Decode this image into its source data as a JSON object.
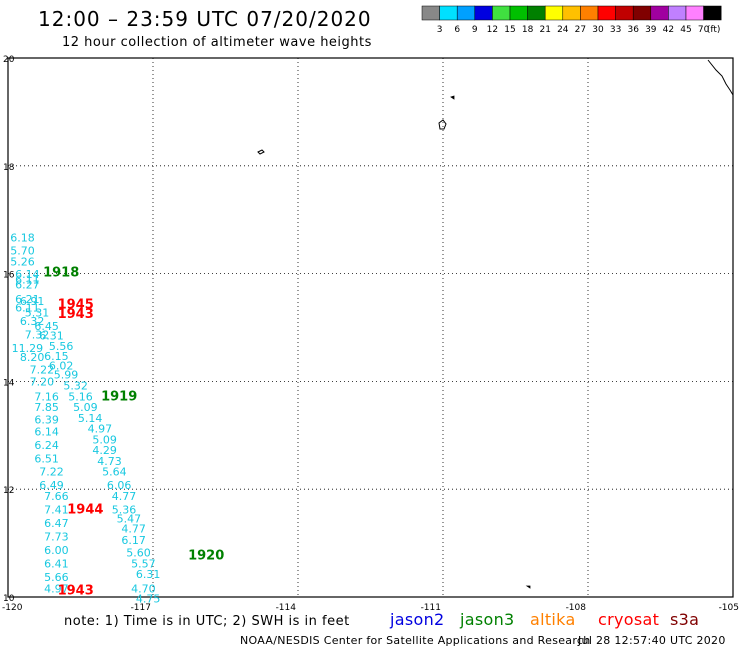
{
  "header": {
    "title": "12:00 – 23:59 UTC 07/20/2020",
    "subtitle": "12 hour collection of altimeter wave heights"
  },
  "legend": {
    "colors": [
      "#888888",
      "#00e0ff",
      "#00a0ff",
      "#0000e0",
      "#40e040",
      "#00c000",
      "#008000",
      "#ffff00",
      "#ffc000",
      "#ff8000",
      "#ff0000",
      "#c00000",
      "#800000",
      "#a000a0",
      "#c080ff",
      "#ff80ff",
      "#000000"
    ],
    "labels": [
      "3",
      "6",
      "9",
      "12",
      "15",
      "18",
      "21",
      "24",
      "27",
      "30",
      "33",
      "36",
      "39",
      "42",
      "45",
      "70"
    ],
    "unit": "(ft)"
  },
  "chart_data": {
    "type": "scatter",
    "title": "12:00 – 23:59 UTC 07/20/2020",
    "xlim": [
      -120,
      -105
    ],
    "ylim": [
      10,
      20
    ],
    "x_ticks": [
      "-120",
      "-117",
      "-114",
      "-111",
      "-108",
      "-105"
    ],
    "y_ticks": [
      "10",
      "12",
      "14",
      "16",
      "18",
      "20"
    ],
    "grid": true,
    "points": [
      {
        "lon": -119.7,
        "lat": 16.6,
        "swh": "6.18"
      },
      {
        "lon": -119.7,
        "lat": 16.35,
        "swh": "5.70"
      },
      {
        "lon": -119.7,
        "lat": 16.15,
        "swh": "5.26"
      },
      {
        "lon": -119.6,
        "lat": 15.92,
        "swh": "6.14"
      },
      {
        "lon": -119.6,
        "lat": 15.82,
        "swh": "6.11"
      },
      {
        "lon": -119.6,
        "lat": 15.72,
        "swh": "6.27"
      },
      {
        "lon": -119.6,
        "lat": 15.45,
        "swh": "6.21"
      },
      {
        "lon": -119.5,
        "lat": 15.42,
        "swh": "6.91"
      },
      {
        "lon": -119.6,
        "lat": 15.3,
        "swh": "6.11"
      },
      {
        "lon": -119.4,
        "lat": 15.2,
        "swh": "5.31"
      },
      {
        "lon": -119.5,
        "lat": 15.05,
        "swh": "6.32"
      },
      {
        "lon": -119.2,
        "lat": 14.95,
        "swh": "6.45"
      },
      {
        "lon": -119.4,
        "lat": 14.8,
        "swh": "7.32"
      },
      {
        "lon": -119.1,
        "lat": 14.78,
        "swh": "6.31"
      },
      {
        "lon": -119.6,
        "lat": 14.55,
        "swh": "11.29"
      },
      {
        "lon": -118.9,
        "lat": 14.58,
        "swh": "5.56"
      },
      {
        "lon": -119.5,
        "lat": 14.38,
        "swh": "8.20"
      },
      {
        "lon": -119.0,
        "lat": 14.4,
        "swh": "6.15"
      },
      {
        "lon": -118.9,
        "lat": 14.22,
        "swh": "6.02"
      },
      {
        "lon": -119.3,
        "lat": 14.15,
        "swh": "7.22"
      },
      {
        "lon": -118.8,
        "lat": 14.05,
        "swh": "5.99"
      },
      {
        "lon": -119.3,
        "lat": 13.92,
        "swh": "7.20"
      },
      {
        "lon": -118.6,
        "lat": 13.85,
        "swh": "5.32"
      },
      {
        "lon": -119.2,
        "lat": 13.65,
        "swh": "7.16"
      },
      {
        "lon": -118.5,
        "lat": 13.65,
        "swh": "5.16"
      },
      {
        "lon": -119.2,
        "lat": 13.45,
        "swh": "7.85"
      },
      {
        "lon": -118.4,
        "lat": 13.45,
        "swh": "5.09"
      },
      {
        "lon": -119.2,
        "lat": 13.22,
        "swh": "6.39"
      },
      {
        "lon": -118.3,
        "lat": 13.25,
        "swh": "5.14"
      },
      {
        "lon": -119.2,
        "lat": 13.0,
        "swh": "6.14"
      },
      {
        "lon": -118.1,
        "lat": 13.05,
        "swh": "4.97"
      },
      {
        "lon": -119.2,
        "lat": 12.75,
        "swh": "6.24"
      },
      {
        "lon": -118.0,
        "lat": 12.85,
        "swh": "5.09"
      },
      {
        "lon": -118.0,
        "lat": 12.65,
        "swh": "4.29"
      },
      {
        "lon": -119.2,
        "lat": 12.5,
        "swh": "6.51"
      },
      {
        "lon": -117.9,
        "lat": 12.45,
        "swh": "4.73"
      },
      {
        "lon": -119.1,
        "lat": 12.25,
        "swh": "7.22"
      },
      {
        "lon": -117.8,
        "lat": 12.25,
        "swh": "5.64"
      },
      {
        "lon": -119.1,
        "lat": 12.0,
        "swh": "6.49"
      },
      {
        "lon": -117.7,
        "lat": 12.0,
        "swh": "6.06"
      },
      {
        "lon": -119.0,
        "lat": 11.8,
        "swh": "7.66"
      },
      {
        "lon": -117.6,
        "lat": 11.8,
        "swh": "4.77"
      },
      {
        "lon": -119.0,
        "lat": 11.55,
        "swh": "7.41"
      },
      {
        "lon": -117.6,
        "lat": 11.55,
        "swh": "5.36"
      },
      {
        "lon": -117.5,
        "lat": 11.38,
        "swh": "5.47"
      },
      {
        "lon": -119.0,
        "lat": 11.3,
        "swh": "6.47"
      },
      {
        "lon": -117.4,
        "lat": 11.2,
        "swh": "4.77"
      },
      {
        "lon": -119.0,
        "lat": 11.05,
        "swh": "7.73"
      },
      {
        "lon": -117.4,
        "lat": 10.98,
        "swh": "6.17"
      },
      {
        "lon": -119.0,
        "lat": 10.8,
        "swh": "6.00"
      },
      {
        "lon": -117.3,
        "lat": 10.75,
        "swh": "5.60"
      },
      {
        "lon": -119.0,
        "lat": 10.55,
        "swh": "6.41"
      },
      {
        "lon": -117.2,
        "lat": 10.55,
        "swh": "5.57"
      },
      {
        "lon": -119.0,
        "lat": 10.3,
        "swh": "5.66"
      },
      {
        "lon": -117.1,
        "lat": 10.35,
        "swh": "6.31"
      },
      {
        "lon": -119.0,
        "lat": 10.08,
        "swh": "4.97"
      },
      {
        "lon": -117.2,
        "lat": 10.08,
        "swh": "4.70"
      },
      {
        "lon": -117.1,
        "lat": 9.9,
        "swh": "4.75"
      }
    ],
    "times": [
      {
        "lon": -118.9,
        "lat": 15.95,
        "label": "1918",
        "mission": "jason3"
      },
      {
        "lon": -118.6,
        "lat": 15.35,
        "label": "1945",
        "mission": "cryosat"
      },
      {
        "lon": -118.6,
        "lat": 15.18,
        "label": "1943",
        "mission": "cryosat"
      },
      {
        "lon": -117.7,
        "lat": 13.65,
        "label": "1919",
        "mission": "jason3"
      },
      {
        "lon": -118.4,
        "lat": 11.55,
        "label": "1944",
        "mission": "cryosat"
      },
      {
        "lon": -115.9,
        "lat": 10.7,
        "label": "1920",
        "mission": "jason3"
      },
      {
        "lon": -118.6,
        "lat": 10.05,
        "label": "1943",
        "mission": "cryosat"
      }
    ]
  },
  "footer": {
    "note": "note:  1) Time is in UTC;  2) SWH is in feet",
    "satellites": [
      {
        "name": "jason2",
        "color": "#0000e0"
      },
      {
        "name": "jason3",
        "color": "#008000"
      },
      {
        "name": "altika",
        "color": "#ff8000"
      },
      {
        "name": "cryosat",
        "color": "#ff0000"
      },
      {
        "name": "s3a",
        "color": "#800000"
      }
    ],
    "credit": "NOAA/NESDIS Center for Satellite Applications and Research",
    "timestamp": "Jul 28 12:57:40 UTC 2020"
  }
}
